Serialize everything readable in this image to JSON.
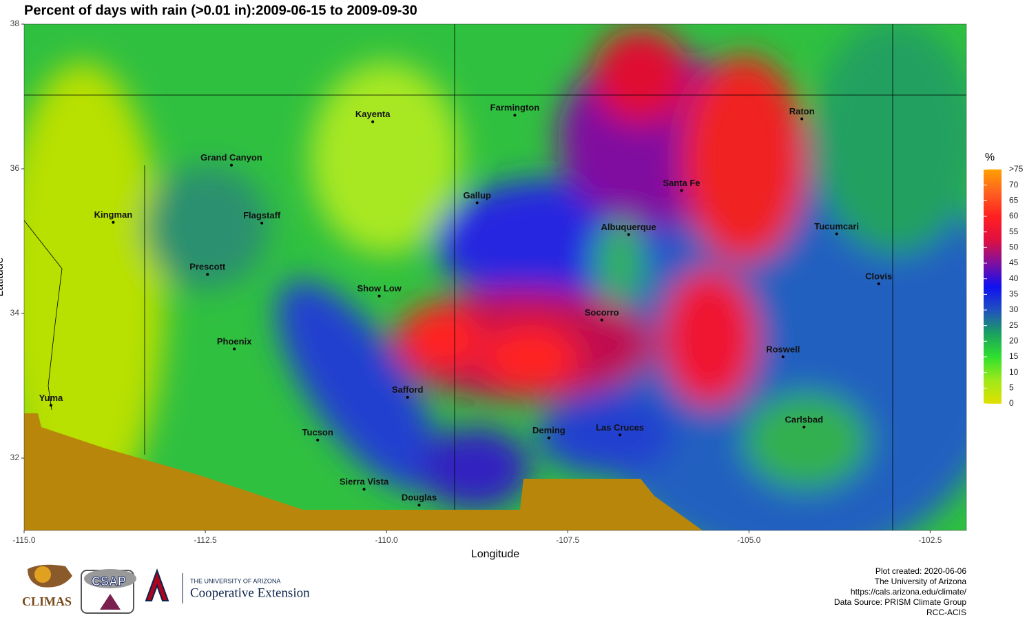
{
  "chart_data": {
    "type": "map",
    "title": "Percent of days with rain (>0.01 in):2009-06-15 to 2009-09-30",
    "x_label": "Longitude",
    "y_label": "Latitude",
    "xlim": [
      -115,
      -102
    ],
    "ylim": [
      31,
      38
    ],
    "xticks": [
      {
        "value": -115,
        "label": "-115.0"
      },
      {
        "value": -112.5,
        "label": "-112.5"
      },
      {
        "value": -110,
        "label": "-110.0"
      },
      {
        "value": -107.5,
        "label": "-107.5"
      },
      {
        "value": -105,
        "label": "-105.0"
      },
      {
        "value": -102.5,
        "label": "-102.5"
      }
    ],
    "yticks": [
      32,
      34,
      36,
      38
    ],
    "cities": [
      {
        "name": "Kayenta",
        "lon": -110.19,
        "lat": 36.65
      },
      {
        "name": "Farmington",
        "lon": -108.23,
        "lat": 36.74
      },
      {
        "name": "Raton",
        "lon": -104.27,
        "lat": 36.69
      },
      {
        "name": "Grand Canyon",
        "lon": -112.14,
        "lat": 36.05
      },
      {
        "name": "Kingman",
        "lon": -113.77,
        "lat": 35.26
      },
      {
        "name": "Flagstaff",
        "lon": -111.72,
        "lat": 35.25
      },
      {
        "name": "Gallup",
        "lon": -108.75,
        "lat": 35.53
      },
      {
        "name": "Santa Fe",
        "lon": -105.93,
        "lat": 35.7
      },
      {
        "name": "Albuquerque",
        "lon": -106.66,
        "lat": 35.09
      },
      {
        "name": "Tucumcari",
        "lon": -103.79,
        "lat": 35.1
      },
      {
        "name": "Prescott",
        "lon": -112.47,
        "lat": 34.54
      },
      {
        "name": "Clovis",
        "lon": -103.21,
        "lat": 34.41
      },
      {
        "name": "Show Low",
        "lon": -110.1,
        "lat": 34.24
      },
      {
        "name": "Socorro",
        "lon": -107.03,
        "lat": 33.91
      },
      {
        "name": "Phoenix",
        "lon": -112.1,
        "lat": 33.51
      },
      {
        "name": "Roswell",
        "lon": -104.53,
        "lat": 33.4
      },
      {
        "name": "Safford",
        "lon": -109.71,
        "lat": 32.84
      },
      {
        "name": "Yuma",
        "lon": -114.63,
        "lat": 32.73
      },
      {
        "name": "Carlsbad",
        "lon": -104.24,
        "lat": 32.43
      },
      {
        "name": "Las Cruces",
        "lon": -106.78,
        "lat": 32.32
      },
      {
        "name": "Deming",
        "lon": -107.76,
        "lat": 32.28
      },
      {
        "name": "Tucson",
        "lon": -110.95,
        "lat": 32.25
      },
      {
        "name": "Sierra Vista",
        "lon": -110.31,
        "lat": 31.57
      },
      {
        "name": "Douglas",
        "lon": -109.55,
        "lat": 31.35
      }
    ],
    "legend": {
      "title": "%",
      "lim": [
        0,
        75
      ],
      "ticks": [
        0,
        5,
        10,
        15,
        20,
        25,
        30,
        35,
        40,
        45,
        50,
        55,
        60,
        65,
        70,
        {
          "value": 75,
          "label": ">75"
        }
      ],
      "colors": [
        "#e0e000",
        "#9fe81a",
        "#2ee02e",
        "#1aa060",
        "#2050c0",
        "#1010f0",
        "#8010a0",
        "#e01040",
        "#ff2020",
        "#ff6020",
        "#ffa000"
      ]
    }
  },
  "footer": {
    "credits": [
      "Plot created: 2020-06-06",
      "The University of Arizona",
      "https://cals.arizona.edu/climate/",
      "Data Source: PRISM Climate Group",
      "RCC-ACIS"
    ],
    "logos": {
      "climas": "CLIMAS",
      "csap": "CSAP",
      "ua_small": "THE UNIVERSITY OF ARIZONA",
      "ua_big": "Cooperative Extension"
    }
  }
}
